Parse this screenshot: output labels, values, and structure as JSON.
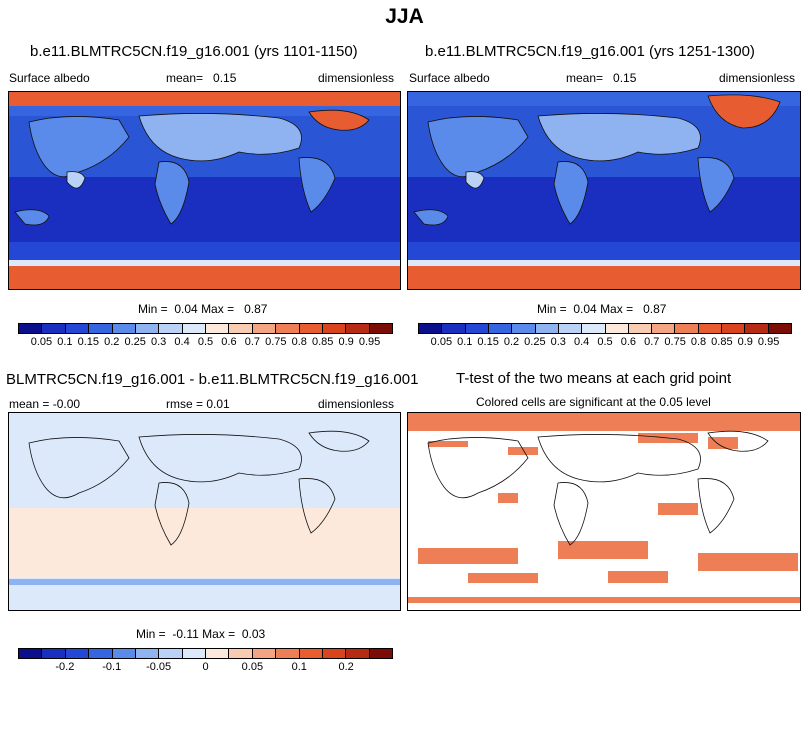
{
  "figure": {
    "title": "JJA"
  },
  "panels": [
    {
      "title": "b.e11.BLMTRC5CN.f19_g16.001 (yrs 1101-1150)",
      "left_label": "Surface albedo",
      "mean_label": "mean=",
      "mean_value": "0.15",
      "units": "dimensionless",
      "minmax_label_min": "Min =",
      "min_value": "0.04",
      "minmax_label_max": "Max =",
      "max_value": "0.87"
    },
    {
      "title": "b.e11.BLMTRC5CN.f19_g16.001 (yrs 1251-1300)",
      "left_label": "Surface albedo",
      "mean_label": "mean=",
      "mean_value": "0.15",
      "units": "dimensionless",
      "minmax_label_min": "Min =",
      "min_value": "0.04",
      "minmax_label_max": "Max =",
      "max_value": "0.87"
    },
    {
      "title": "BLMTRC5CN.f19_g16.001 - b.e11.BLMTRC5CN.f19_g16.001",
      "mean_text": "mean =  -0.00",
      "rmse_text": "rmse =   0.01",
      "units": "dimensionless",
      "minmax_label_min": "Min =",
      "min_value": "-0.11",
      "minmax_label_max": "Max =",
      "max_value": "0.03"
    },
    {
      "title": "T-test of the two means at each grid point",
      "subtitle": "Colored cells are significant at the 0.05 level"
    }
  ],
  "colorbars": {
    "albedo": {
      "colors": [
        "#0b0f8c",
        "#1a2fbf",
        "#2447d6",
        "#3566e0",
        "#5a8bea",
        "#8fb2f0",
        "#b9d2f6",
        "#dbe9fb",
        "#fde9dc",
        "#f9cbb1",
        "#f3a483",
        "#ee7e55",
        "#e85c32",
        "#d9431e",
        "#b72a14",
        "#7b0d06"
      ],
      "labels": [
        "0.05",
        "0.1",
        "0.15",
        "0.2",
        "0.25",
        "0.3",
        "0.4",
        "0.5",
        "0.6",
        "0.7",
        "0.75",
        "0.8",
        "0.85",
        "0.9",
        "0.95"
      ]
    },
    "diff": {
      "colors": [
        "#0b0f8c",
        "#1a2fbf",
        "#2447d6",
        "#3566e0",
        "#5a8bea",
        "#8fb2f0",
        "#b9d2f6",
        "#dbe9fb",
        "#fde9dc",
        "#f9cbb1",
        "#f3a483",
        "#ee7e55",
        "#e85c32",
        "#d9431e",
        "#b72a14",
        "#7b0d06"
      ],
      "labels": [
        {
          "text": "-0.2",
          "boundary": 2
        },
        {
          "text": "-0.1",
          "boundary": 4
        },
        {
          "text": "-0.05",
          "boundary": 6
        },
        {
          "text": "0",
          "boundary": 8
        },
        {
          "text": "0.05",
          "boundary": 10
        },
        {
          "text": "0.1",
          "boundary": 12
        },
        {
          "text": "0.2",
          "boundary": 14
        }
      ]
    }
  },
  "chart_data": [
    {
      "type": "heatmap",
      "title": "b.e11.BLMTRC5CN.f19_g16.001 (yrs 1101-1150)",
      "variable": "Surface albedo",
      "units": "dimensionless",
      "mean": 0.15,
      "min": 0.04,
      "max": 0.87,
      "levels": [
        0.05,
        0.1,
        0.15,
        0.2,
        0.25,
        0.3,
        0.4,
        0.5,
        0.6,
        0.7,
        0.75,
        0.8,
        0.85,
        0.9,
        0.95
      ]
    },
    {
      "type": "heatmap",
      "title": "b.e11.BLMTRC5CN.f19_g16.001 (yrs 1251-1300)",
      "variable": "Surface albedo",
      "units": "dimensionless",
      "mean": 0.15,
      "min": 0.04,
      "max": 0.87,
      "levels": [
        0.05,
        0.1,
        0.15,
        0.2,
        0.25,
        0.3,
        0.4,
        0.5,
        0.6,
        0.7,
        0.75,
        0.8,
        0.85,
        0.9,
        0.95
      ]
    },
    {
      "type": "heatmap",
      "title": "BLMTRC5CN.f19_g16.001 - b.e11.BLMTRC5CN.f19_g16.001",
      "units": "dimensionless",
      "mean": -0.0,
      "rmse": 0.01,
      "min": -0.11,
      "max": 0.03,
      "levels": [
        -0.2,
        -0.1,
        -0.05,
        0,
        0.05,
        0.1,
        0.2
      ]
    },
    {
      "type": "heatmap",
      "title": "T-test of the two means at each grid point",
      "note": "Colored cells are significant at the 0.05 level"
    }
  ]
}
